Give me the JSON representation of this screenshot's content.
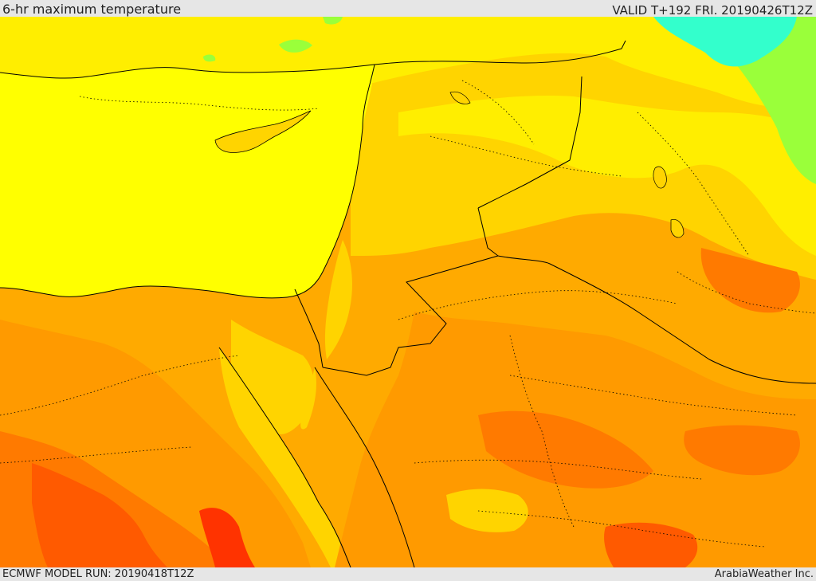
{
  "header": {
    "title": "6-hr maximum temperature",
    "valid": "VALID T+192 FRI. 20190426T12Z"
  },
  "footer": {
    "model_run": "ECMWF MODEL RUN: 20190418T12Z",
    "credit": "ArabiaWeather Inc."
  },
  "map": {
    "region": "Eastern Mediterranean / Middle East",
    "colors": {
      "sea": "#ffff00",
      "warm_yellow": "#ffd400",
      "orange_light": "#ffb400",
      "orange": "#ff9a00",
      "orange_dark": "#ff7a00",
      "red_orange": "#ff5a00",
      "red": "#ff3300",
      "green": "#9aff3a",
      "cyan": "#33ffcc",
      "border_line": "#000000"
    }
  }
}
